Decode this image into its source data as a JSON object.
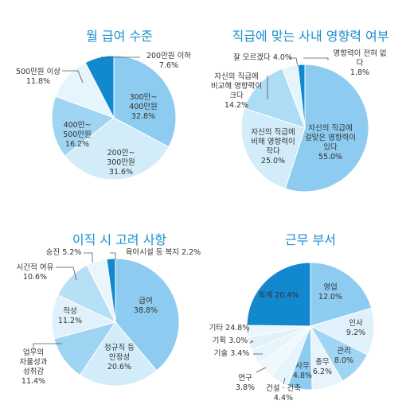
{
  "chart_data": [
    {
      "type": "pie",
      "title": "월 급여 수준",
      "categories": [
        "300만~\n400만원",
        "200만~\n300만원",
        "400만~\n500만원",
        "500만원 이상",
        "200만원 이하"
      ],
      "values": [
        32.8,
        31.6,
        16.2,
        11.8,
        7.6
      ],
      "value_labels": [
        "32.8%",
        "31.6%",
        "16.2%",
        "11.8%",
        "7.6%"
      ],
      "colors": [
        "#8dccf0",
        "#d3ecfa",
        "#9fd4f2",
        "#e6f4fc",
        "#1289cf"
      ]
    },
    {
      "type": "pie",
      "title": "직급에 맞는 사내 영향력 여부",
      "categories": [
        "자신의 직급에\n걸맞은 영향력이\n있다",
        "자신의 직급에\n비해 영향력이\n작다",
        "자신의 직급에\n비교해 영향력이\n크다",
        "잘 모르겠다",
        "영향력이 전혀 없다"
      ],
      "values": [
        55.0,
        25.0,
        14.2,
        4.0,
        1.8
      ],
      "value_labels": [
        "55.0%",
        "25.0%",
        "14.2%",
        "4.0%",
        "1.8%"
      ],
      "colors": [
        "#8dccf0",
        "#d3ecfa",
        "#addcf5",
        "#e6f4fc",
        "#1289cf"
      ]
    },
    {
      "type": "pie",
      "title": "이직 시 고려 사항",
      "categories": [
        "급여",
        "정규직 등\n안정성",
        "업무의\n자율성과\n성취감",
        "적성",
        "시간적 여유",
        "승진",
        "육아시설 등 복지"
      ],
      "values": [
        38.8,
        20.6,
        11.4,
        11.2,
        10.6,
        5.2,
        2.2
      ],
      "value_labels": [
        "38.8%",
        "20.6%",
        "11.4%",
        "11.2%",
        "10.6%",
        "5.2%",
        "2.2%"
      ],
      "colors": [
        "#8dccf0",
        "#d3ecfa",
        "#9fd4f2",
        "#e0f1fb",
        "#b6e0f6",
        "#eaf6fc",
        "#1289cf"
      ]
    },
    {
      "type": "pie",
      "title": "근무 부서",
      "categories": [
        "회계",
        "영업",
        "인사",
        "관리",
        "총무",
        "사무",
        "건설 · 건축",
        "연구",
        "기술",
        "기획",
        "기타"
      ],
      "values": [
        20.4,
        12.0,
        9.2,
        8.0,
        6.2,
        4.8,
        4.4,
        3.8,
        3.4,
        3.0,
        24.8
      ],
      "value_labels": [
        "20.4%",
        "12.0%",
        "9.2%",
        "8.0%",
        "6.2%",
        "4.8%",
        "4.4%",
        "3.8%",
        "3.4%",
        "3.0%",
        "24.8%"
      ],
      "colors": [
        "#8dccf0",
        "#e0f1fb",
        "#9fd4f2",
        "#e6f4fc",
        "#8dccf0",
        "#e6f4fc",
        "#eef8fd",
        "#e6f4fc",
        "#e0f1fb",
        "#eaf6fc",
        "#1289cf"
      ]
    }
  ]
}
